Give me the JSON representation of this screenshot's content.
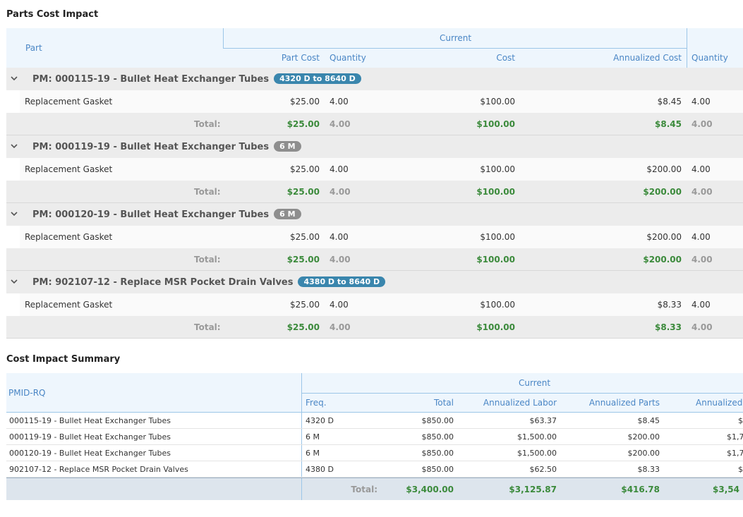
{
  "parts_section": {
    "title": "Parts Cost Impact",
    "header": {
      "group_label": "Current",
      "col_part": "Part",
      "col_part_cost": "Part Cost",
      "col_quantity": "Quantity",
      "col_cost": "Cost",
      "col_annualized_cost": "Annualized Cost",
      "col_quantity_2": "Quantity"
    },
    "total_label": "Total:",
    "groups": [
      {
        "title": "PM: 000115-19 - Bullet Heat Exchanger Tubes",
        "badge": "4320 D to 8640 D",
        "badge_color": "#3a86ad",
        "item": {
          "part": "Replacement Gasket",
          "part_cost": "$25.00",
          "quantity": "4.00",
          "cost": "$100.00",
          "annualized_cost": "$8.45",
          "quantity_2": "4.00"
        },
        "total": {
          "part_cost": "$25.00",
          "quantity": "4.00",
          "cost": "$100.00",
          "annualized_cost": "$8.45",
          "quantity_2": "4.00"
        }
      },
      {
        "title": "PM: 000119-19 - Bullet Heat Exchanger Tubes",
        "badge": "6 M",
        "badge_color": "#8e8e8e",
        "item": {
          "part": "Replacement Gasket",
          "part_cost": "$25.00",
          "quantity": "4.00",
          "cost": "$100.00",
          "annualized_cost": "$200.00",
          "quantity_2": "4.00"
        },
        "total": {
          "part_cost": "$25.00",
          "quantity": "4.00",
          "cost": "$100.00",
          "annualized_cost": "$200.00",
          "quantity_2": "4.00"
        }
      },
      {
        "title": "PM: 000120-19 - Bullet Heat Exchanger Tubes",
        "badge": "6 M",
        "badge_color": "#8e8e8e",
        "item": {
          "part": "Replacement Gasket",
          "part_cost": "$25.00",
          "quantity": "4.00",
          "cost": "$100.00",
          "annualized_cost": "$200.00",
          "quantity_2": "4.00"
        },
        "total": {
          "part_cost": "$25.00",
          "quantity": "4.00",
          "cost": "$100.00",
          "annualized_cost": "$200.00",
          "quantity_2": "4.00"
        }
      },
      {
        "title": "PM: 902107-12 - Replace MSR Pocket Drain Valves",
        "badge": "4380 D to 8640 D",
        "badge_color": "#3a86ad",
        "item": {
          "part": "Replacement Gasket",
          "part_cost": "$25.00",
          "quantity": "4.00",
          "cost": "$100.00",
          "annualized_cost": "$8.33",
          "quantity_2": "4.00"
        },
        "total": {
          "part_cost": "$25.00",
          "quantity": "4.00",
          "cost": "$100.00",
          "annualized_cost": "$8.33",
          "quantity_2": "4.00"
        }
      }
    ]
  },
  "summary_section": {
    "title": "Cost Impact Summary",
    "header": {
      "group_label": "Current",
      "col_pmid": "PMID-RQ",
      "col_freq": "Freq.",
      "col_total": "Total",
      "col_annualized_labor": "Annualized Labor",
      "col_annualized_parts": "Annualized Parts",
      "col_annualized_cut": "Annualized"
    },
    "rows": [
      {
        "pmid": "000115-19 - Bullet Heat Exchanger Tubes",
        "freq": "4320 D",
        "total": "$850.00",
        "annualized_labor": "$63.37",
        "annualized_parts": "$8.45",
        "annualized_cut": "$"
      },
      {
        "pmid": "000119-19 - Bullet Heat Exchanger Tubes",
        "freq": "6 M",
        "total": "$850.00",
        "annualized_labor": "$1,500.00",
        "annualized_parts": "$200.00",
        "annualized_cut": "$1,7"
      },
      {
        "pmid": "000120-19 - Bullet Heat Exchanger Tubes",
        "freq": "6 M",
        "total": "$850.00",
        "annualized_labor": "$1,500.00",
        "annualized_parts": "$200.00",
        "annualized_cut": "$1,7"
      },
      {
        "pmid": "902107-12 - Replace MSR Pocket Drain Valves",
        "freq": "4380 D",
        "total": "$850.00",
        "annualized_labor": "$62.50",
        "annualized_parts": "$8.33",
        "annualized_cut": "$"
      }
    ],
    "totals": {
      "label": "Total:",
      "total": "$3,400.00",
      "annualized_labor": "$3,125.87",
      "annualized_parts": "$416.78",
      "annualized_cut": "$3,54"
    }
  },
  "colors": {
    "header_bg": "#eef6fd",
    "header_text": "#4a86c5",
    "total_green": "#3b8a3b",
    "group_bg": "#ececec"
  }
}
